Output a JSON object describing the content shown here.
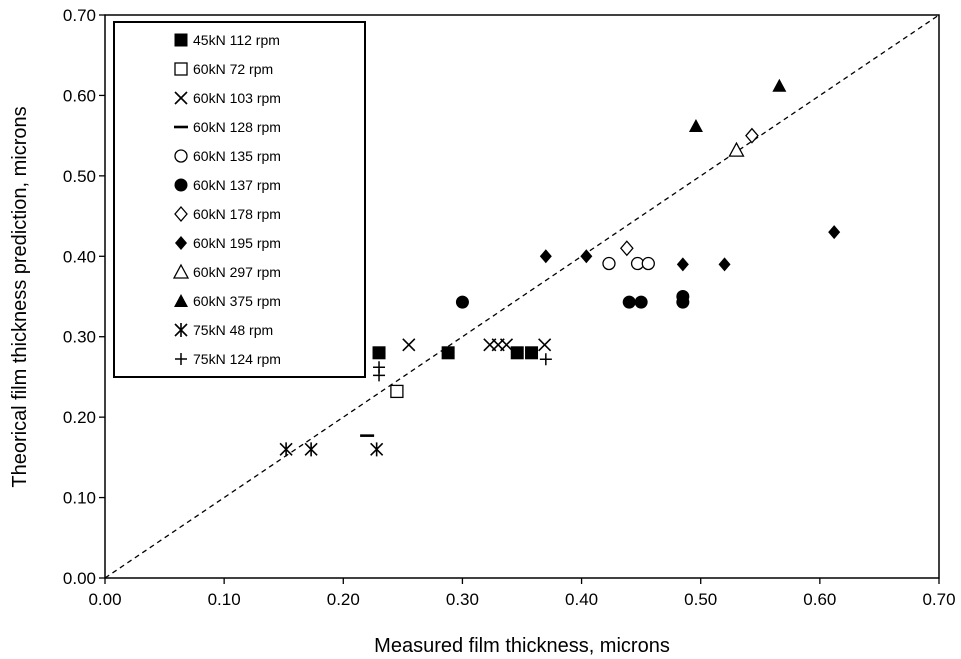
{
  "chart_data": {
    "type": "scatter",
    "xlabel": "Measured film thickness, microns",
    "ylabel": "Theorical film thickness prediction, microns",
    "xlim": [
      0.0,
      0.7
    ],
    "ylim": [
      0.0,
      0.7
    ],
    "x_ticks": [
      "0.00",
      "0.10",
      "0.20",
      "0.30",
      "0.40",
      "0.50",
      "0.60",
      "0.70"
    ],
    "y_ticks": [
      "0.00",
      "0.10",
      "0.20",
      "0.30",
      "0.40",
      "0.50",
      "0.60",
      "0.70"
    ],
    "grid": false,
    "legend_position": "top-left",
    "reference_line": {
      "style": "dashed",
      "from": [
        0.0,
        0.0
      ],
      "to": [
        0.7,
        0.7
      ]
    },
    "series": [
      {
        "name": "45kN 112 rpm",
        "marker": "filled-square",
        "points": [
          [
            0.23,
            0.28
          ],
          [
            0.288,
            0.28
          ],
          [
            0.346,
            0.28
          ],
          [
            0.358,
            0.28
          ]
        ]
      },
      {
        "name": "60kN 72 rpm",
        "marker": "open-square",
        "points": [
          [
            0.245,
            0.232
          ]
        ]
      },
      {
        "name": "60kN 103 rpm",
        "marker": "x",
        "points": [
          [
            0.255,
            0.29
          ],
          [
            0.323,
            0.29
          ],
          [
            0.33,
            0.29
          ],
          [
            0.337,
            0.29
          ],
          [
            0.369,
            0.29
          ]
        ]
      },
      {
        "name": "60kN 128 rpm",
        "marker": "dash",
        "points": [
          [
            0.22,
            0.177
          ]
        ]
      },
      {
        "name": "60kN 135 rpm",
        "marker": "open-circle",
        "points": [
          [
            0.423,
            0.391
          ],
          [
            0.447,
            0.391
          ],
          [
            0.456,
            0.391
          ]
        ]
      },
      {
        "name": "60kN 137 rpm",
        "marker": "filled-circle",
        "points": [
          [
            0.3,
            0.343
          ],
          [
            0.44,
            0.343
          ],
          [
            0.45,
            0.343
          ],
          [
            0.485,
            0.343
          ],
          [
            0.485,
            0.35
          ]
        ]
      },
      {
        "name": "60kN 178 rpm",
        "marker": "open-diamond",
        "points": [
          [
            0.438,
            0.41
          ],
          [
            0.543,
            0.55
          ]
        ]
      },
      {
        "name": "60kN 195 rpm",
        "marker": "filled-diamond",
        "points": [
          [
            0.37,
            0.4
          ],
          [
            0.404,
            0.4
          ],
          [
            0.485,
            0.39
          ],
          [
            0.52,
            0.39
          ],
          [
            0.612,
            0.43
          ]
        ]
      },
      {
        "name": "60kN 297 rpm",
        "marker": "open-triangle",
        "points": [
          [
            0.53,
            0.532
          ]
        ]
      },
      {
        "name": "60kN 375 rpm",
        "marker": "filled-triangle",
        "points": [
          [
            0.496,
            0.562
          ],
          [
            0.566,
            0.612
          ]
        ]
      },
      {
        "name": "75kN 48 rpm",
        "marker": "asterisk",
        "points": [
          [
            0.152,
            0.16
          ],
          [
            0.173,
            0.16
          ],
          [
            0.228,
            0.16
          ]
        ]
      },
      {
        "name": "75kN 124 rpm",
        "marker": "plus",
        "points": [
          [
            0.23,
            0.252
          ],
          [
            0.23,
            0.262
          ],
          [
            0.37,
            0.272
          ]
        ]
      }
    ]
  }
}
